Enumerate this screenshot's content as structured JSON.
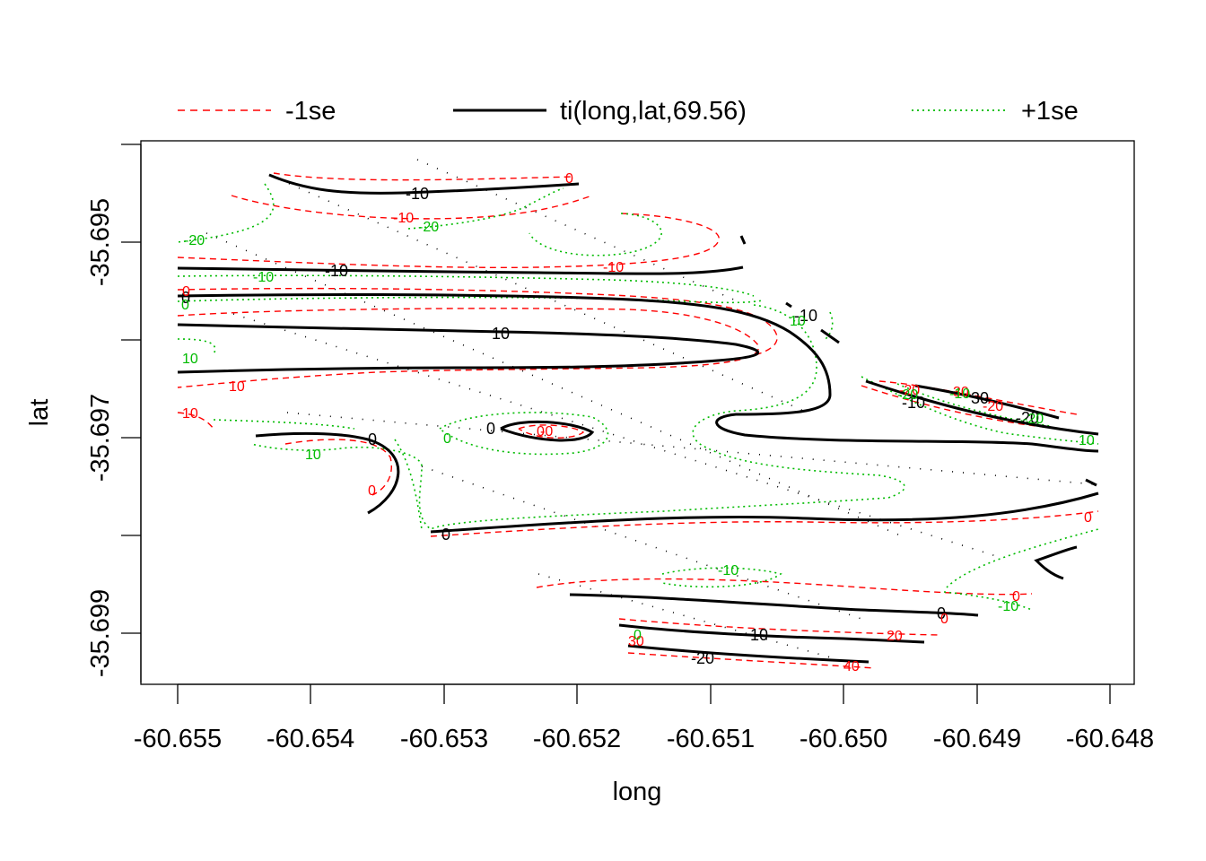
{
  "chart_data": {
    "type": "contour",
    "title": "",
    "xlabel": "long",
    "ylabel": "lat",
    "x_ticks": [
      "-60.655",
      "-60.654",
      "-60.653",
      "-60.652",
      "-60.651",
      "-60.650",
      "-60.649",
      "-60.648"
    ],
    "y_ticks": [
      "-35.695",
      "-35.697",
      "-35.699"
    ],
    "xlim": [
      -60.6553,
      -60.6479
    ],
    "ylim": [
      -35.6996,
      -35.6938
    ],
    "legend": {
      "placement": "top",
      "entries": [
        {
          "label": "-1se",
          "color": "#ff0000",
          "style": "dashed"
        },
        {
          "label": "ti(long,lat,69.56)",
          "color": "#000000",
          "style": "solid"
        },
        {
          "label": "+1se",
          "color": "#00bb00",
          "style": "dotted"
        }
      ]
    },
    "contour_labels": {
      "fit": [
        "-10",
        "-10",
        "0",
        "10",
        "-10",
        "0",
        "-10",
        "30",
        "-20",
        "0",
        "0",
        "0",
        "10",
        "-20"
      ],
      "minus_se": [
        "0",
        "-10",
        "-10",
        "0",
        "10",
        "10",
        "0",
        "-20",
        "30",
        "-20",
        "0",
        "-0",
        "0",
        "0",
        "0",
        "20",
        "30",
        "40"
      ],
      "plus_se": [
        "-20",
        "-20",
        "-10",
        "0",
        "10",
        "10",
        "10",
        "-20",
        "-20",
        "10",
        "0",
        "-10",
        "-10",
        "-10",
        "0"
      ]
    }
  }
}
